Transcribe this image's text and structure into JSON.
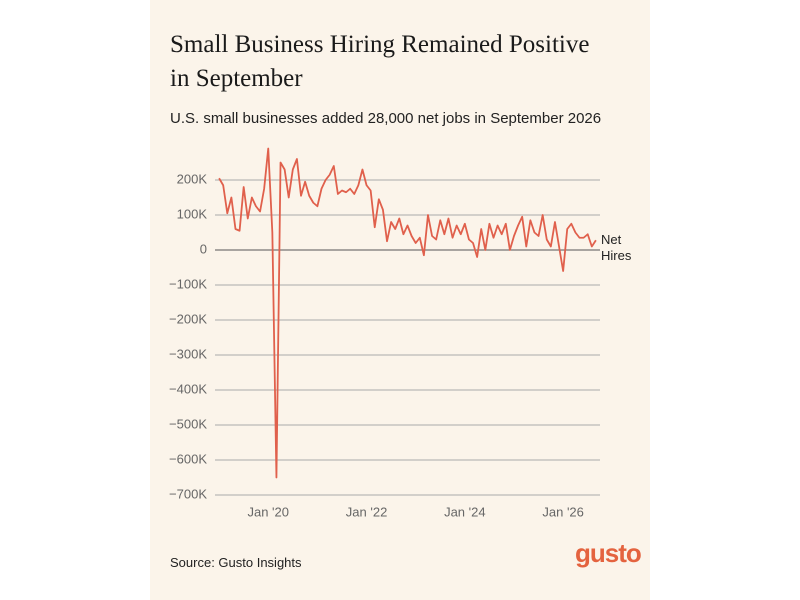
{
  "chart_data": {
    "type": "line",
    "title": "Small Business Hiring Remained Positive in September",
    "subtitle": "U.S. small businesses added 28,000 net jobs in September 2026",
    "source": "Source: Gusto Insights",
    "logo": "gusto",
    "x": [
      "2019-01",
      "2019-02",
      "2019-03",
      "2019-04",
      "2019-05",
      "2019-06",
      "2019-07",
      "2019-08",
      "2019-09",
      "2019-10",
      "2019-11",
      "2019-12",
      "2020-01",
      "2020-02",
      "2020-03",
      "2020-04",
      "2020-05",
      "2020-06",
      "2020-07",
      "2020-08",
      "2020-09",
      "2020-10",
      "2020-11",
      "2020-12",
      "2021-01",
      "2021-02",
      "2021-03",
      "2021-04",
      "2021-05",
      "2021-06",
      "2021-07",
      "2021-08",
      "2021-09",
      "2021-10",
      "2021-11",
      "2021-12",
      "2022-01",
      "2022-02",
      "2022-03",
      "2022-04",
      "2022-05",
      "2022-06",
      "2022-07",
      "2022-08",
      "2022-09",
      "2022-10",
      "2022-11",
      "2022-12",
      "2023-01",
      "2023-02",
      "2023-03",
      "2023-04",
      "2023-05",
      "2023-06",
      "2023-07",
      "2023-08",
      "2023-09",
      "2023-10",
      "2023-11",
      "2023-12",
      "2024-01",
      "2024-02",
      "2024-03",
      "2024-04",
      "2024-05",
      "2024-06",
      "2024-07",
      "2024-08",
      "2024-09",
      "2024-10",
      "2024-11",
      "2024-12",
      "2025-01",
      "2025-02",
      "2025-03",
      "2025-04",
      "2025-05",
      "2025-06",
      "2025-07",
      "2025-08",
      "2025-09",
      "2025-10",
      "2025-11",
      "2025-12",
      "2026-01",
      "2026-02",
      "2026-03",
      "2026-04",
      "2026-05",
      "2026-06",
      "2026-07",
      "2026-08",
      "2026-09"
    ],
    "series": [
      {
        "name": "Net Hires",
        "color": "#e0604c",
        "values": [
          205000,
          185000,
          105000,
          150000,
          60000,
          55000,
          180000,
          90000,
          150000,
          125000,
          110000,
          175000,
          290000,
          50000,
          -650000,
          250000,
          230000,
          150000,
          230000,
          260000,
          155000,
          195000,
          155000,
          135000,
          125000,
          175000,
          200000,
          215000,
          240000,
          160000,
          170000,
          165000,
          175000,
          160000,
          185000,
          230000,
          185000,
          170000,
          65000,
          145000,
          115000,
          25000,
          80000,
          60000,
          90000,
          45000,
          70000,
          40000,
          20000,
          35000,
          -15000,
          100000,
          40000,
          30000,
          85000,
          45000,
          90000,
          35000,
          70000,
          45000,
          75000,
          30000,
          20000,
          -20000,
          60000,
          0,
          75000,
          35000,
          70000,
          45000,
          75000,
          0,
          40000,
          70000,
          95000,
          10000,
          85000,
          50000,
          40000,
          100000,
          30000,
          10000,
          80000,
          10000,
          -60000,
          60000,
          75000,
          50000,
          35000,
          35000,
          45000,
          10000,
          28000
        ]
      }
    ],
    "xlim": [
      "2018-12",
      "2026-10"
    ],
    "xticks": [
      {
        "value": "2020-01",
        "label": "Jan '20"
      },
      {
        "value": "2022-01",
        "label": "Jan '22"
      },
      {
        "value": "2024-01",
        "label": "Jan '24"
      },
      {
        "value": "2026-01",
        "label": "Jan '26"
      }
    ],
    "ylim": [
      -700000,
      300000
    ],
    "yticks": [
      {
        "value": 200000,
        "label": "200K"
      },
      {
        "value": 100000,
        "label": "100K"
      },
      0,
      {
        "value": -100000,
        "label": "−100K"
      },
      {
        "value": -200000,
        "label": "−200K"
      },
      {
        "value": -300000,
        "label": "−300K"
      },
      {
        "value": -400000,
        "label": "−400K"
      },
      {
        "value": -500000,
        "label": "−500K"
      },
      {
        "value": -600000,
        "label": "−600K"
      },
      {
        "value": -700000,
        "label": "−700K"
      }
    ],
    "grid": true
  }
}
